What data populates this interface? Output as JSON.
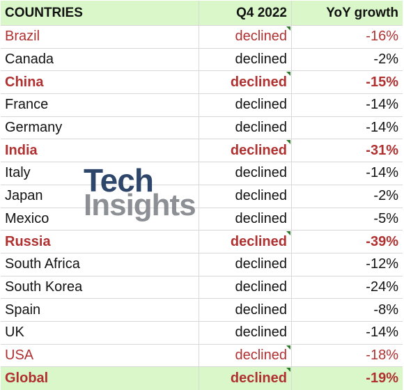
{
  "header": {
    "col1": "COUNTRIES",
    "col2": "Q4 2022",
    "col3": "YoY growth"
  },
  "rows": [
    {
      "country": "Brazil",
      "status": "declined",
      "growth": "-16%",
      "style": "red"
    },
    {
      "country": "Canada",
      "status": "declined",
      "growth": "-2%",
      "style": "normal"
    },
    {
      "country": "China",
      "status": "declined",
      "growth": "-15%",
      "style": "red-bold"
    },
    {
      "country": "France",
      "status": "declined",
      "growth": "-14%",
      "style": "normal"
    },
    {
      "country": "Germany",
      "status": "declined",
      "growth": "-14%",
      "style": "normal"
    },
    {
      "country": "India",
      "status": "declined",
      "growth": "-31%",
      "style": "red-bold"
    },
    {
      "country": "Italy",
      "status": "declined",
      "growth": "-14%",
      "style": "normal"
    },
    {
      "country": "Japan",
      "status": "declined",
      "growth": "-2%",
      "style": "normal"
    },
    {
      "country": "Mexico",
      "status": "declined",
      "growth": "-5%",
      "style": "normal"
    },
    {
      "country": "Russia",
      "status": "declined",
      "growth": "-39%",
      "style": "red-bold"
    },
    {
      "country": "South Africa",
      "status": "declined",
      "growth": "-12%",
      "style": "normal"
    },
    {
      "country": "South Korea",
      "status": "declined",
      "growth": "-24%",
      "style": "normal"
    },
    {
      "country": "Spain",
      "status": "declined",
      "growth": "-8%",
      "style": "normal"
    },
    {
      "country": "UK",
      "status": "declined",
      "growth": "-14%",
      "style": "normal"
    },
    {
      "country": "USA",
      "status": "declined",
      "growth": "-18%",
      "style": "red"
    }
  ],
  "global": {
    "country": "Global",
    "status": "declined",
    "growth": "-19%"
  },
  "watermark": {
    "line1": "Tech",
    "line2": "Insights"
  },
  "colors": {
    "header_bg": "#d9f7c9",
    "highlight_red": "#b03030",
    "flag_green": "#2a7a2a"
  }
}
